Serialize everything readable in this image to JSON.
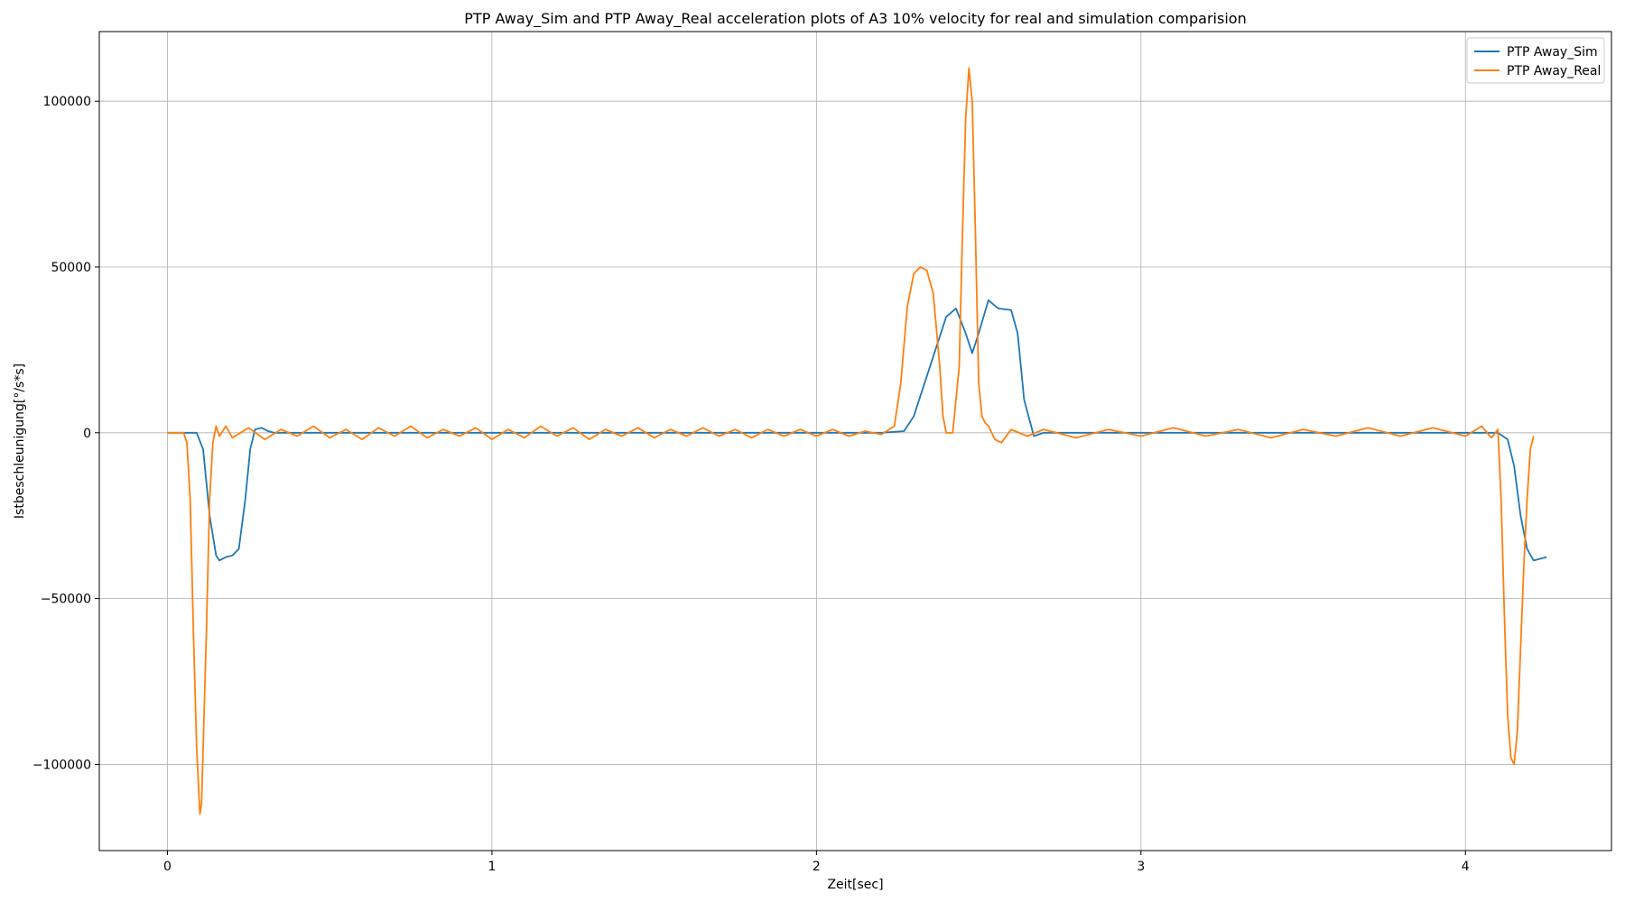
{
  "chart_data": {
    "type": "line",
    "title": "PTP Away_Sim and PTP Away_Real acceleration plots of A3 10% velocity for real and simulation comparision",
    "xlabel": "Zeit[sec]",
    "ylabel": "Istbeschleunigung[°/s*s]",
    "xlim": [
      -0.21,
      4.45
    ],
    "ylim": [
      -126000,
      121000
    ],
    "xticks": [
      0,
      1,
      2,
      3,
      4
    ],
    "xtick_labels": [
      "0",
      "1",
      "2",
      "3",
      "4"
    ],
    "yticks": [
      -100000,
      -50000,
      0,
      50000,
      100000
    ],
    "ytick_labels": [
      "−100000",
      "−50000",
      "0",
      "50000",
      "100000"
    ],
    "grid": true,
    "legend_position": "top-right",
    "series": [
      {
        "name": "PTP Away_Sim",
        "color": "#1f77b4",
        "x": [
          0,
          0.09,
          0.11,
          0.13,
          0.15,
          0.16,
          0.18,
          0.2,
          0.22,
          0.24,
          0.255,
          0.27,
          0.29,
          0.31,
          0.33,
          0.5,
          1.0,
          1.5,
          2.0,
          2.2,
          2.27,
          2.3,
          2.35,
          2.4,
          2.43,
          2.46,
          2.48,
          2.5,
          2.53,
          2.56,
          2.6,
          2.62,
          2.64,
          2.67,
          2.7,
          2.75,
          3.0,
          3.5,
          4.0,
          4.1,
          4.13,
          4.15,
          4.17,
          4.19,
          4.21,
          4.23,
          4.25
        ],
        "y": [
          0,
          0,
          -5000,
          -25000,
          -37000,
          -38500,
          -37500,
          -37000,
          -35000,
          -20000,
          -5000,
          1000,
          1500,
          500,
          0,
          0,
          0,
          0,
          0,
          0,
          500,
          5000,
          20000,
          35000,
          37500,
          30000,
          24000,
          30000,
          40000,
          37500,
          37000,
          30000,
          10000,
          -1000,
          0,
          0,
          0,
          0,
          0,
          0,
          -2000,
          -10000,
          -25000,
          -35000,
          -38500,
          -38000,
          -37500
        ]
      },
      {
        "name": "PTP Away_Real",
        "color": "#ff7f0e",
        "x": [
          0,
          0.05,
          0.06,
          0.07,
          0.08,
          0.09,
          0.1,
          0.105,
          0.11,
          0.12,
          0.13,
          0.14,
          0.15,
          0.16,
          0.18,
          0.2,
          0.25,
          0.3,
          0.35,
          0.4,
          0.45,
          0.5,
          0.55,
          0.6,
          0.65,
          0.7,
          0.75,
          0.8,
          0.85,
          0.9,
          0.95,
          1.0,
          1.05,
          1.1,
          1.15,
          1.2,
          1.25,
          1.3,
          1.35,
          1.4,
          1.45,
          1.5,
          1.55,
          1.6,
          1.65,
          1.7,
          1.75,
          1.8,
          1.85,
          1.9,
          1.95,
          2.0,
          2.05,
          2.1,
          2.15,
          2.2,
          2.24,
          2.26,
          2.28,
          2.3,
          2.32,
          2.34,
          2.36,
          2.38,
          2.39,
          2.4,
          2.42,
          2.44,
          2.45,
          2.46,
          2.47,
          2.48,
          2.49,
          2.5,
          2.51,
          2.52,
          2.53,
          2.55,
          2.57,
          2.6,
          2.65,
          2.7,
          2.8,
          2.9,
          3.0,
          3.1,
          3.2,
          3.3,
          3.4,
          3.5,
          3.6,
          3.7,
          3.8,
          3.9,
          4.0,
          4.05,
          4.08,
          4.1,
          4.11,
          4.12,
          4.13,
          4.14,
          4.15,
          4.16,
          4.17,
          4.18,
          4.19,
          4.2,
          4.21
        ],
        "y": [
          0,
          0,
          -3000,
          -20000,
          -60000,
          -95000,
          -115000,
          -112000,
          -95000,
          -60000,
          -20000,
          -3000,
          2000,
          -1000,
          2000,
          -1500,
          1500,
          -2000,
          1000,
          -1000,
          2000,
          -1500,
          1000,
          -2000,
          1500,
          -1000,
          2000,
          -1500,
          1000,
          -1000,
          1500,
          -2000,
          1000,
          -1500,
          2000,
          -1000,
          1500,
          -2000,
          1000,
          -1000,
          1500,
          -1500,
          1000,
          -1000,
          1500,
          -1000,
          1000,
          -1500,
          1000,
          -1000,
          1000,
          -1000,
          1000,
          -1000,
          500,
          -500,
          2000,
          15000,
          38000,
          48000,
          50000,
          49000,
          42000,
          20000,
          5000,
          0,
          0,
          20000,
          60000,
          95000,
          110000,
          100000,
          60000,
          15000,
          5000,
          3000,
          2000,
          -2000,
          -3000,
          1000,
          -1000,
          1000,
          -1500,
          1000,
          -1000,
          1500,
          -1000,
          1000,
          -1500,
          1000,
          -1000,
          1500,
          -1000,
          1500,
          -1000,
          2000,
          -1500,
          1000,
          -20000,
          -55000,
          -85000,
          -98000,
          -100000,
          -90000,
          -65000,
          -40000,
          -20000,
          -5000,
          -1000
        ]
      }
    ]
  }
}
